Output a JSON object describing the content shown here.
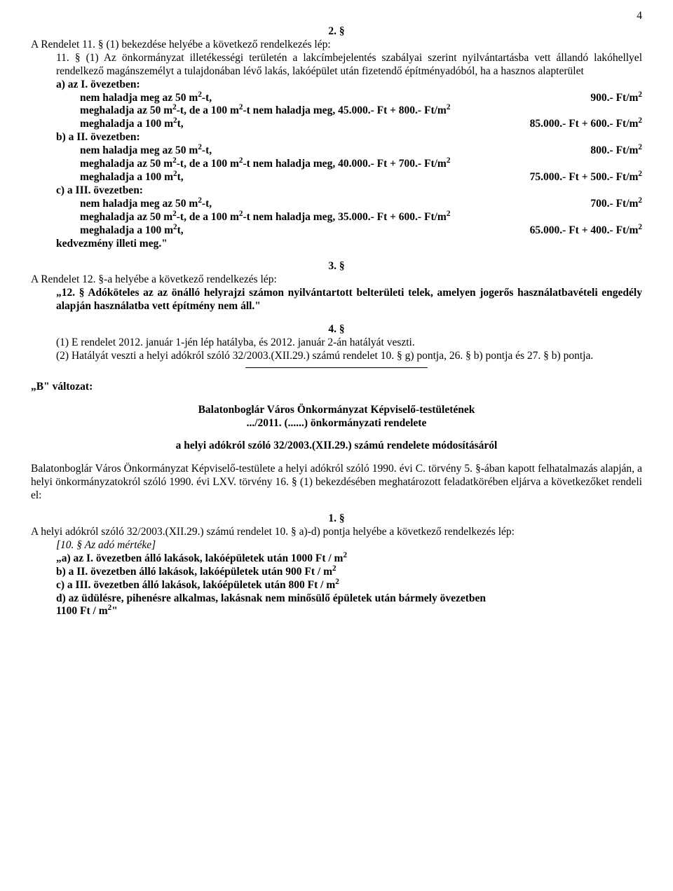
{
  "pageNumber": "4",
  "s2_heading": "2. §",
  "s2_intro": "A Rendelet 11. § (1) bekezdése helyébe a következő rendelkezés lép:",
  "s2_para_main": "11. § (1) Az önkormányzat illetékességi területén a lakcímbejelentés szabályai szerint nyilvántartásba vett állandó lakóhellyel rendelkező magánszemélyt a tulajdonában lévő lakás, lakóépület után fizetendő építményadóból, ha a hasznos alapterület",
  "zones": [
    {
      "label": "a) az I. övezetben:",
      "lines": [
        {
          "left": "nem haladja meg az 50 m²-t,",
          "right": "900.- Ft/m²"
        },
        {
          "left": "meghaladja az 50 m²-t, de a 100 m²-t nem haladja meg, 45.000.- Ft + 800.- Ft/m²",
          "right": ""
        },
        {
          "left": "meghaladja a 100 m²t,",
          "right": "85.000.- Ft + 600.- Ft/m²"
        }
      ]
    },
    {
      "label": "b) a II. övezetben:",
      "lines": [
        {
          "left": "nem haladja meg az 50 m²-t,",
          "right": "800.- Ft/m²"
        },
        {
          "left": "meghaladja az 50 m²-t, de a 100 m²-t nem haladja meg, 40.000.- Ft + 700.- Ft/m²",
          "right": ""
        },
        {
          "left": "meghaladja a 100 m²t,",
          "right": "75.000.- Ft + 500.- Ft/m²"
        }
      ]
    },
    {
      "label": "c) a III. övezetben:",
      "lines": [
        {
          "left": "nem haladja meg az 50 m²-t,",
          "right": "700.- Ft/m²"
        },
        {
          "left": "meghaladja az 50 m²-t, de a 100 m²-t nem haladja meg, 35.000.- Ft + 600.- Ft/m²",
          "right": ""
        },
        {
          "left": "meghaladja a 100 m²t,",
          "right": "65.000.- Ft + 400.- Ft/m²"
        }
      ]
    }
  ],
  "s2_closing": "kedvezmény illeti meg.\"",
  "s3_heading": "3. §",
  "s3_intro": "A Rendelet 12. §-a helyébe a következő rendelkezés lép:",
  "s3_body": "„12. § Adóköteles az az önálló helyrajzi számon nyilvántartott belterületi telek, amelyen jogerős használatbavételi engedély alapján használatba vett építmény nem áll.\"",
  "s4_heading": "4. §",
  "s4_line1": "(1) E rendelet 2012. január 1-jén lép hatályba, és 2012. január 2-án hatályát veszti.",
  "s4_line2": "(2) Hatályát veszti a helyi adókról szóló 32/2003.(XII.29.) számú rendelet 10. § g) pontja, 26. § b) pontja és 27. § b) pontja.",
  "variantB_label": "„B\" változat:",
  "draft_line1": "Balatonboglár Város Önkormányzat Képviselő-testületének",
  "draft_line2": ".../2011. (......) önkormányzati rendelete",
  "draft_subject": "a  helyi  adókról szóló 32/2003.(XII.29.) számú rendelete módosításáról",
  "preamble": "Balatonboglár Város Önkormányzat Képviselő-testülete a helyi adókról szóló 1990. évi C. törvény 5. §-ában kapott felhatalmazás alapján, a helyi önkormányzatokról szóló 1990. évi LXV. törvény 16. § (1) bekezdésében meghatározott feladatkörében eljárva a következőket rendeli el:",
  "s1_heading": "1. §",
  "s1_intro": "A helyi adókról szóló 32/2003.(XII.29.) számú rendelet 10. § a)-d) pontja helyébe a következő rendelkezés lép:",
  "s1_ref_label": "[10. § Az adó mértéke]",
  "s1_lines": [
    "„a) az I. övezetben álló lakások, lakóépületek után 1000 Ft / m²",
    "b) a II. övezetben álló lakások, lakóépületek után 900 Ft / m²",
    "c) a III. övezetben álló lakások, lakóépületek után 800 Ft / m²",
    "d) az üdülésre, pihenésre alkalmas, lakásnak nem minősülő  épületek után bármely övezetben"
  ],
  "s1_last": "1100 Ft / m²\""
}
